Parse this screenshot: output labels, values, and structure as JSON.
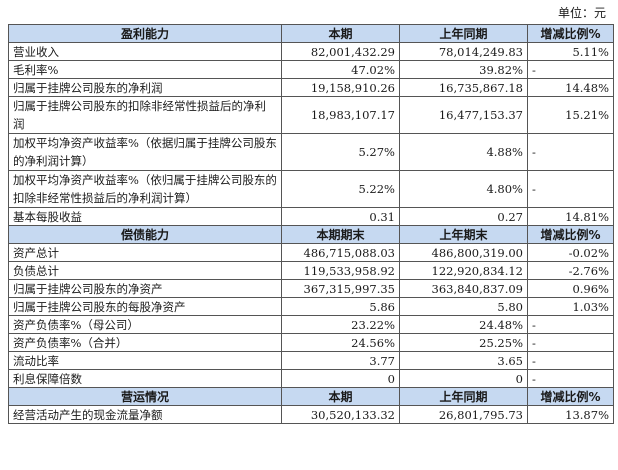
{
  "unit_label": "单位：元",
  "sections": [
    {
      "headers": [
        "盈利能力",
        "本期",
        "上年同期",
        "增减比例%"
      ],
      "rows": [
        {
          "label": "营业收入",
          "v1": "82,001,432.29",
          "v2": "78,014,249.83",
          "change": "5.11%"
        },
        {
          "label": "毛利率%",
          "v1": "47.02%",
          "v2": "39.82%",
          "change": "-"
        },
        {
          "label": "归属于挂牌公司股东的净利润",
          "v1": "19,158,910.26",
          "v2": "16,735,867.18",
          "change": "14.48%"
        },
        {
          "label": "归属于挂牌公司股东的扣除非经常性损益后的净利润",
          "v1": "18,983,107.17",
          "v2": "16,477,153.37",
          "change": "15.21%"
        },
        {
          "label": "加权平均净资产收益率%（依据归属于挂牌公司股东的净利润计算）",
          "v1": "5.27%",
          "v2": "4.88%",
          "change": "-"
        },
        {
          "label": "加权平均净资产收益率%（依归属于挂牌公司股东的扣除非经常性损益后的净利润计算）",
          "v1": "5.22%",
          "v2": "4.80%",
          "change": "-"
        },
        {
          "label": "基本每股收益",
          "v1": "0.31",
          "v2": "0.27",
          "change": "14.81%"
        }
      ]
    },
    {
      "headers": [
        "偿债能力",
        "本期期末",
        "上年期末",
        "增减比例%"
      ],
      "rows": [
        {
          "label": "资产总计",
          "v1": "486,715,088.03",
          "v2": "486,800,319.00",
          "change": "-0.02%"
        },
        {
          "label": "负债总计",
          "v1": "119,533,958.92",
          "v2": "122,920,834.12",
          "change": "-2.76%"
        },
        {
          "label": "归属于挂牌公司股东的净资产",
          "v1": "367,315,997.35",
          "v2": "363,840,837.09",
          "change": "0.96%"
        },
        {
          "label": "归属于挂牌公司股东的每股净资产",
          "v1": "5.86",
          "v2": "5.80",
          "change": "1.03%"
        },
        {
          "label": "资产负债率%（母公司）",
          "v1": "23.22%",
          "v2": "24.48%",
          "change": "-"
        },
        {
          "label": "资产负债率%（合并）",
          "v1": "24.56%",
          "v2": "25.25%",
          "change": "-"
        },
        {
          "label": "流动比率",
          "v1": "3.77",
          "v2": "3.65",
          "change": "-"
        },
        {
          "label": "利息保障倍数",
          "v1": "0",
          "v2": "0",
          "change": "-"
        }
      ]
    },
    {
      "headers": [
        "营运情况",
        "本期",
        "上年同期",
        "增减比例%"
      ],
      "rows": [
        {
          "label": "经营活动产生的现金流量净额",
          "v1": "30,520,133.32",
          "v2": "26,801,795.73",
          "change": "13.87%"
        }
      ]
    }
  ]
}
